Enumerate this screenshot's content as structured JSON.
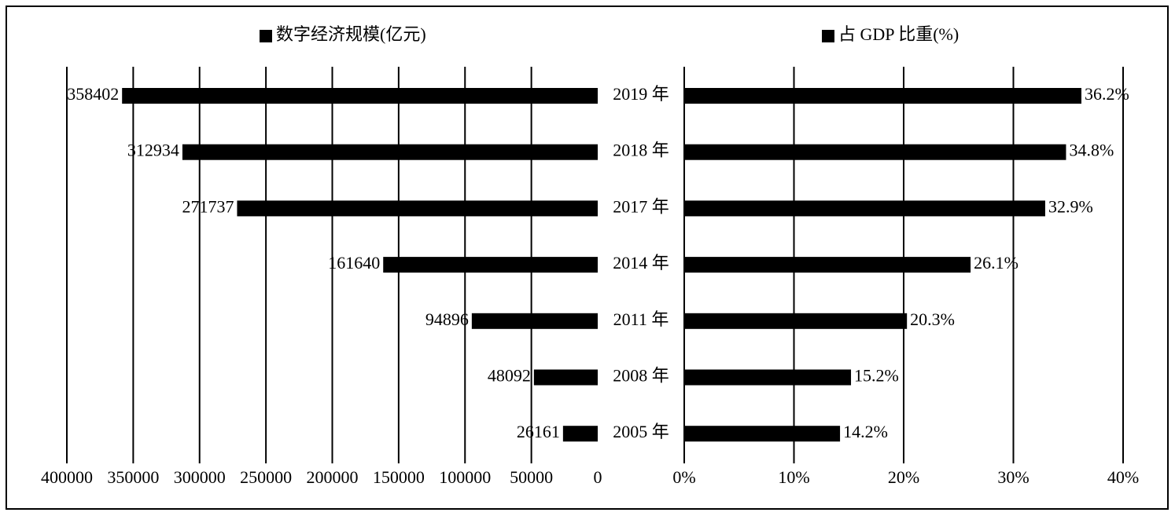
{
  "chart_data": [
    {
      "type": "bar",
      "orientation": "horizontal",
      "categories": [
        "2019 年",
        "2018 年",
        "2017 年",
        "2014 年",
        "2011 年",
        "2008 年",
        "2005 年"
      ],
      "series": [
        {
          "name": "数字经济规模(亿元)",
          "color": "#000000",
          "values": [
            358402,
            312934,
            271737,
            161640,
            94896,
            48092,
            26161
          ]
        }
      ],
      "xlim": [
        400000,
        0
      ],
      "xticks": [
        400000,
        350000,
        300000,
        250000,
        200000,
        150000,
        100000,
        50000,
        0
      ],
      "grid": true
    },
    {
      "type": "bar",
      "orientation": "horizontal",
      "series": [
        {
          "name": "占 GDP 比重(%)",
          "color": "#000000",
          "values": [
            36.2,
            34.8,
            32.9,
            26.1,
            20.3,
            15.2,
            14.2
          ],
          "value_labels": [
            "36.2%",
            "34.8%",
            "32.9%",
            "26.1%",
            "20.3%",
            "15.2%",
            "14.2%"
          ]
        }
      ],
      "xlim": [
        0,
        40
      ],
      "xticks": [
        {
          "value": 0,
          "label": "0%"
        },
        {
          "value": 10,
          "label": "10%"
        },
        {
          "value": 20,
          "label": "20%"
        },
        {
          "value": 30,
          "label": "30%"
        },
        {
          "value": 40,
          "label": "40%"
        }
      ],
      "grid": true
    }
  ]
}
